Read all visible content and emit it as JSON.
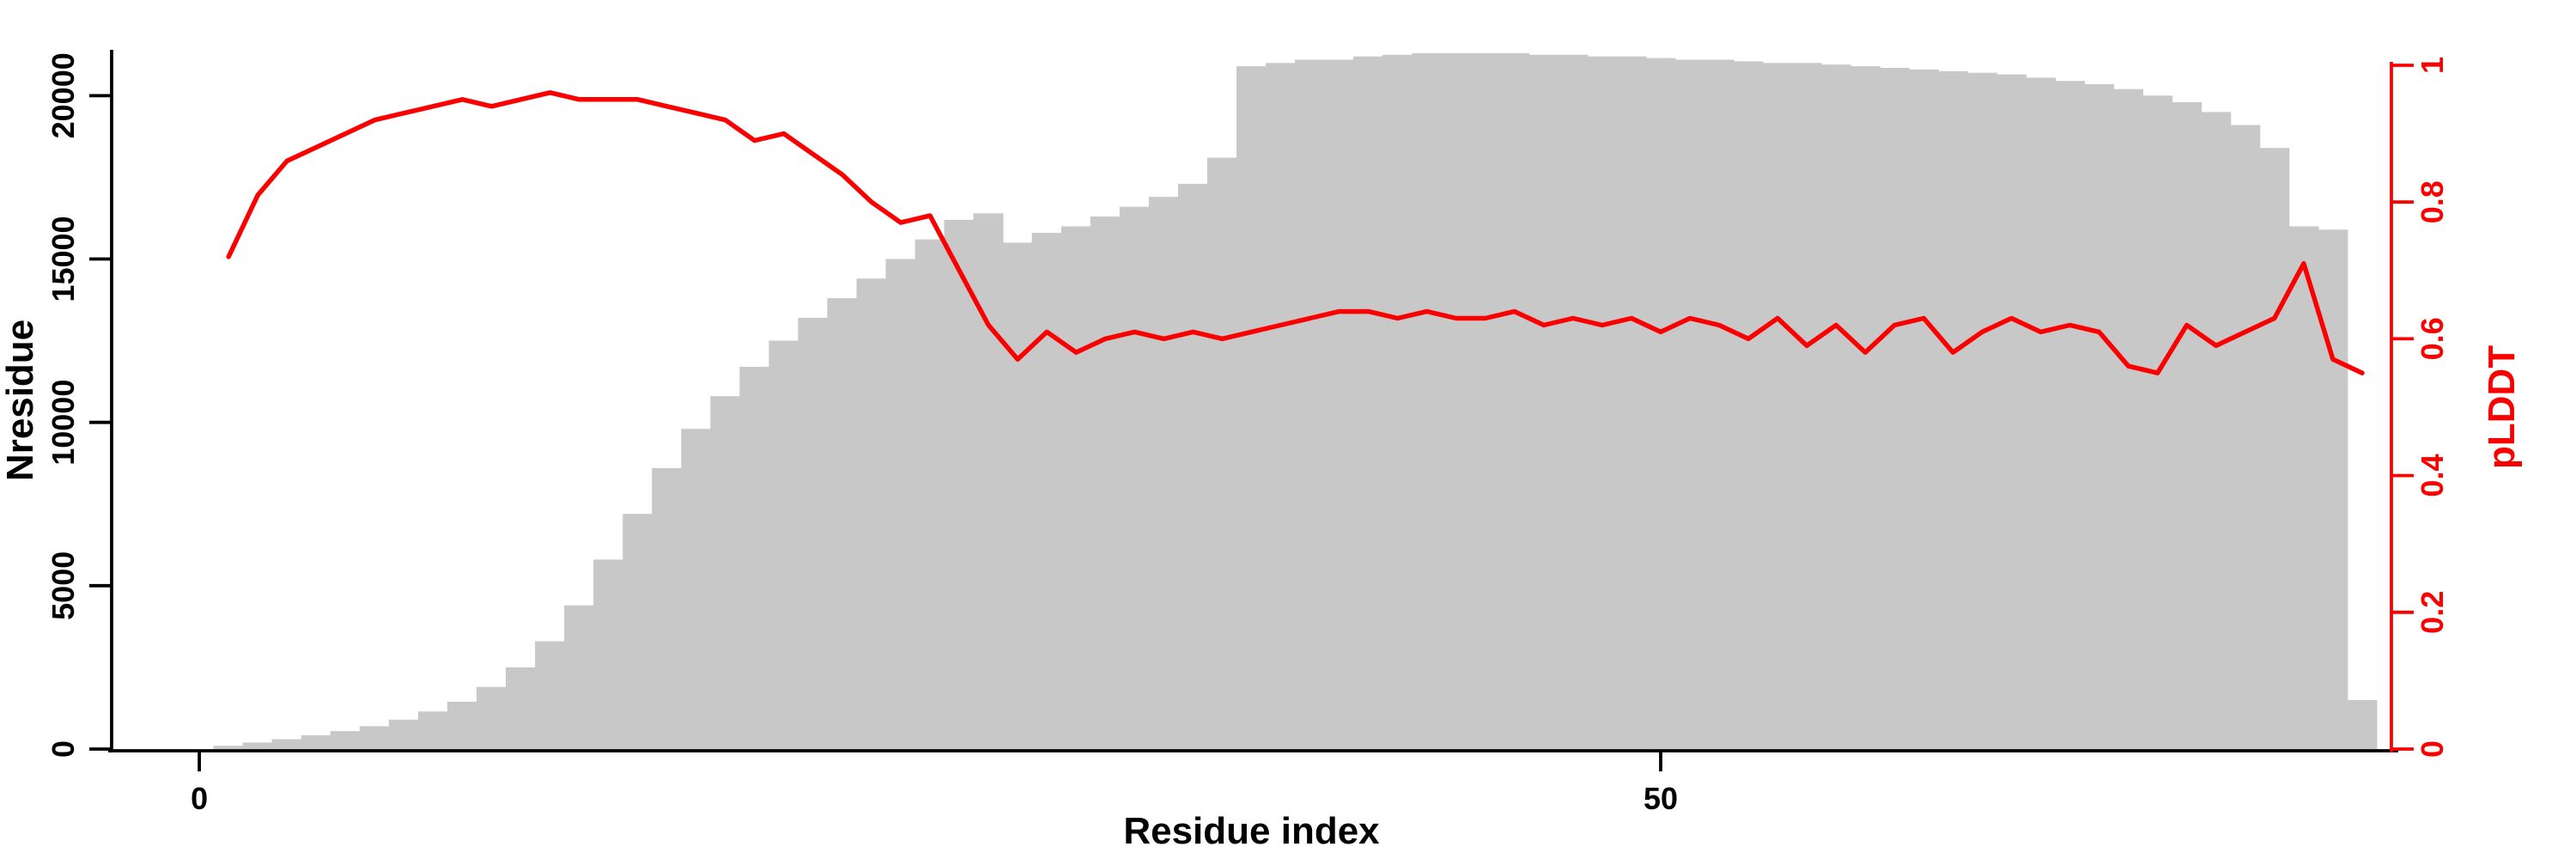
{
  "page": {
    "background": "#ffffff"
  },
  "chart_data": {
    "type": "bar",
    "description": "Per-residue coverage histogram (Nresidue, gray bars, left axis) overlaid with pLDDT line (red, right axis)",
    "xlabel": "Residue index",
    "ylabel_left": "Nresidue",
    "ylabel_right": "pLDDT",
    "x_first": 1,
    "x_step": 1,
    "x_axis_ticks": [
      0,
      50
    ],
    "x_axis_tick_labels": [
      "0",
      "50"
    ],
    "x_range": [
      -3,
      75
    ],
    "y_left_ticks": [
      0,
      5000,
      10000,
      15000,
      20000
    ],
    "y_left_tick_labels": [
      "0",
      "5000",
      "10000",
      "15000",
      "20000"
    ],
    "y_left_range": [
      0,
      21350
    ],
    "y_right_ticks": [
      0,
      0.2,
      0.4,
      0.6,
      0.8,
      1
    ],
    "y_right_tick_labels": [
      "0",
      "0.2",
      "0.4",
      "0.6",
      "0.8",
      "1"
    ],
    "y_right_range": [
      0,
      1
    ],
    "grid": false,
    "legend": "none",
    "bars": {
      "name": "Nresidue",
      "color": "#c8c8c8",
      "values": [
        100,
        200,
        300,
        420,
        550,
        700,
        900,
        1150,
        1450,
        1900,
        2500,
        3300,
        4400,
        5800,
        7200,
        8600,
        9800,
        10800,
        11700,
        12500,
        13200,
        13800,
        14400,
        15000,
        15600,
        16200,
        16400,
        15500,
        15800,
        16000,
        16300,
        16600,
        16900,
        17300,
        18100,
        20900,
        21000,
        21100,
        21100,
        21200,
        21250,
        21300,
        21300,
        21300,
        21300,
        21250,
        21250,
        21200,
        21200,
        21150,
        21100,
        21100,
        21050,
        21000,
        21000,
        20950,
        20900,
        20850,
        20800,
        20750,
        20700,
        20650,
        20550,
        20450,
        20350,
        20200,
        20000,
        19800,
        19500,
        19100,
        18400,
        16000,
        15900,
        1500
      ]
    },
    "line": {
      "name": "pLDDT",
      "color": "#fb0000",
      "values": [
        0.72,
        0.81,
        0.86,
        0.88,
        0.9,
        0.92,
        0.93,
        0.94,
        0.95,
        0.94,
        0.95,
        0.96,
        0.95,
        0.95,
        0.95,
        0.94,
        0.93,
        0.92,
        0.89,
        0.9,
        0.87,
        0.84,
        0.8,
        0.77,
        0.78,
        0.7,
        0.62,
        0.57,
        0.61,
        0.58,
        0.6,
        0.61,
        0.6,
        0.61,
        0.6,
        0.61,
        0.62,
        0.63,
        0.64,
        0.64,
        0.63,
        0.64,
        0.63,
        0.63,
        0.64,
        0.62,
        0.63,
        0.62,
        0.63,
        0.61,
        0.63,
        0.62,
        0.6,
        0.63,
        0.59,
        0.62,
        0.58,
        0.62,
        0.63,
        0.58,
        0.61,
        0.63,
        0.61,
        0.62,
        0.61,
        0.56,
        0.55,
        0.62,
        0.59,
        0.61,
        0.63,
        0.71,
        0.57,
        0.55
      ]
    },
    "axis_color_left": "#000000",
    "axis_color_right": "#fb0000"
  }
}
